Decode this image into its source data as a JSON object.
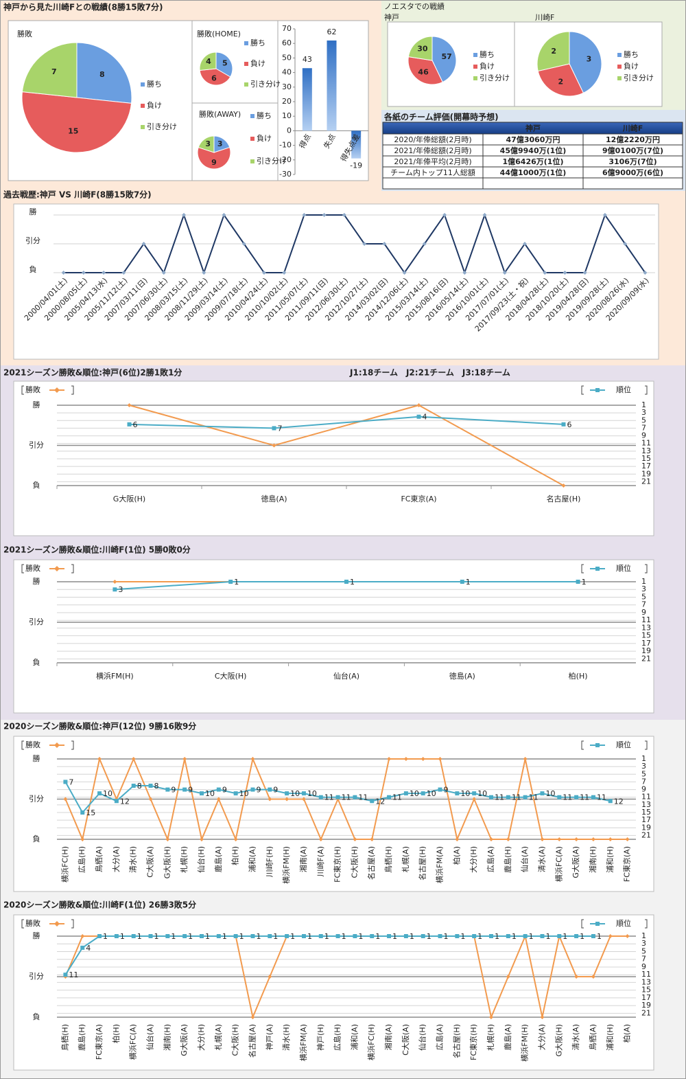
{
  "headings": {
    "kobe_vs_kawasaki": "神戸から見た川崎Fとの戦績(8勝15敗7分)",
    "noesta": "ノエスタでの戦績"
  },
  "table": {
    "title": "各紙のチーム評価(開幕時予想)",
    "header": [
      "神戸",
      "川崎F"
    ],
    "rows": [
      [
        "2020/年俸総額(2月時)",
        "47億3060万円",
        "12億2220万円"
      ],
      [
        "2021/年俸総額(2月時)",
        "45億9940万(1位)",
        "9億0100万(7位)"
      ],
      [
        "2021/年俸平均(2月時)",
        "1億6426万(1位)",
        "3106万(7位)"
      ],
      [
        "チーム内トップ11人総額",
        "44億1000万(1位)",
        "6億9000万(6位)"
      ]
    ]
  },
  "chart_data": [
    {
      "type": "pie",
      "title": "勝敗",
      "categories": [
        "勝ち",
        "負け",
        "引き分け"
      ],
      "values": [
        8,
        15,
        7
      ],
      "colors": [
        "#6a9ee0",
        "#e65c5c",
        "#a8d46a"
      ]
    },
    {
      "type": "pie",
      "title": "勝敗(HOME)",
      "categories": [
        "勝ち",
        "負け",
        "引き分け"
      ],
      "values": [
        5,
        6,
        4
      ],
      "colors": [
        "#6a9ee0",
        "#e65c5c",
        "#a8d46a"
      ]
    },
    {
      "type": "pie",
      "title": "勝敗(AWAY)",
      "categories": [
        "勝ち",
        "負け",
        "引き分け"
      ],
      "values": [
        3,
        9,
        3
      ],
      "colors": [
        "#6a9ee0",
        "#e65c5c",
        "#a8d46a"
      ]
    },
    {
      "type": "bar",
      "categories": [
        "得点",
        "失点",
        "得失点差"
      ],
      "values": [
        43,
        62,
        -19
      ],
      "color": "#4a86d4",
      "ylim": [
        -30,
        70
      ],
      "yticks": [
        -30,
        -20,
        -10,
        0,
        10,
        20,
        30,
        40,
        50,
        60,
        70
      ]
    },
    {
      "type": "pie",
      "title": "神戸",
      "categories": [
        "勝ち",
        "負け",
        "引き分け"
      ],
      "values": [
        57,
        46,
        30
      ],
      "colors": [
        "#6a9ee0",
        "#e65c5c",
        "#a8d46a"
      ]
    },
    {
      "type": "pie",
      "title": "川崎F",
      "categories": [
        "勝ち",
        "負け",
        "引き分け"
      ],
      "values": [
        3,
        2,
        2
      ],
      "colors": [
        "#6a9ee0",
        "#e65c5c",
        "#a8d46a"
      ]
    },
    {
      "type": "line",
      "title": "過去戦歴:神戸 VS 川崎F(8勝15敗7分)",
      "color": "#1f3864",
      "categories": [
        "2000/04/01(土)",
        "2000/08/05(土)",
        "2005/04/13(水)",
        "2005/11/12(土)",
        "2007/03/11(日)",
        "2007/06/30(土)",
        "2008/03/15(土)",
        "2008/11/29(土)",
        "2009/03/14(土)",
        "2009/07/18(土)",
        "2010/04/24(土)",
        "2010/10/02(土)",
        "2011/05/07(土)",
        "2011/09/11(日)",
        "2012/06/30(土)",
        "2012/10/27(土)",
        "2014/03/02(日)",
        "2014/12/06(土)",
        "2015/03/14(土)",
        "2015/08/16(日)",
        "2016/05/14(土)",
        "2016/10/01(土)",
        "2017/07/01(土)",
        "2017/09/23(土・祝)",
        "2018/04/28(土)",
        "2018/10/20(土)",
        "2019/04/28(日)",
        "2019/09/28(土)",
        "2020/08/26(水)",
        "2020/09/09(水)"
      ],
      "values": [
        0,
        0,
        0,
        0,
        1,
        0,
        2,
        0,
        2,
        1,
        0,
        0,
        2,
        2,
        2,
        1,
        1,
        0,
        1,
        2,
        0,
        2,
        0,
        1,
        0,
        0,
        0,
        2,
        1,
        0
      ],
      "ylim": [
        0,
        2
      ],
      "yticks": [
        {
          "value": 0,
          "label": "負"
        },
        {
          "value": 1,
          "label": "引分"
        },
        {
          "value": 2,
          "label": "勝"
        }
      ]
    },
    {
      "type": "line",
      "title": "2021シーズン勝敗&順位:神戸(6位)2勝1敗1分",
      "annotation": "J1:18チーム　J2:21チーム　J3:18チーム",
      "categories": [
        "G大阪(H)",
        "徳島(A)",
        "FC東京(A)",
        "名古屋(H)"
      ],
      "series": [
        {
          "name": "勝敗",
          "color": "#f29a4e",
          "values": [
            2,
            1,
            2,
            0
          ]
        },
        {
          "name": "順位",
          "color": "#4bacc6",
          "axis": "y2",
          "labels": true,
          "values": [
            6,
            7,
            4,
            6
          ]
        }
      ],
      "ylim": [
        0,
        2
      ],
      "yticks": [
        {
          "value": 0,
          "label": "負"
        },
        {
          "value": 1,
          "label": "引分"
        },
        {
          "value": 2,
          "label": "勝"
        }
      ],
      "y2lim": [
        22,
        1
      ],
      "y2ticks": [
        1,
        3,
        5,
        7,
        9,
        11,
        13,
        15,
        17,
        19,
        21
      ]
    },
    {
      "type": "line",
      "title": "2021シーズン勝敗&順位:川崎F(1位) 5勝0敗0分",
      "categories": [
        "横浜FM(H)",
        "C大阪(H)",
        "仙台(A)",
        "徳島(A)",
        "柏(H)"
      ],
      "series": [
        {
          "name": "勝敗",
          "color": "#f29a4e",
          "values": [
            2,
            2,
            2,
            2,
            2
          ]
        },
        {
          "name": "順位",
          "color": "#4bacc6",
          "axis": "y2",
          "labels": true,
          "values": [
            3,
            1,
            1,
            1,
            1
          ]
        }
      ],
      "ylim": [
        0,
        2
      ],
      "yticks": [
        {
          "value": 0,
          "label": "負"
        },
        {
          "value": 1,
          "label": "引分"
        },
        {
          "value": 2,
          "label": "勝"
        }
      ],
      "y2lim": [
        22,
        1
      ],
      "y2ticks": [
        1,
        3,
        5,
        7,
        9,
        11,
        13,
        15,
        17,
        19,
        21
      ]
    },
    {
      "type": "line",
      "title": "2020シーズン勝敗&順位:神戸(12位) 9勝16敗9分",
      "categories": [
        "横浜FC(H)",
        "広島(H)",
        "鳥栖(A)",
        "大分(A)",
        "清水(H)",
        "C大阪(A)",
        "G大阪(H)",
        "札幌(H)",
        "仙台(H)",
        "鹿島(A)",
        "柏(H)",
        "浦和(A)",
        "川崎F(H)",
        "横浜FM(H)",
        "湘南(A)",
        "川崎F(A)",
        "FC東京(H)",
        "C大阪(H)",
        "名古屋(A)",
        "鳥栖(H)",
        "札幌(A)",
        "名古屋(H)",
        "横浜FM(A)",
        "柏(A)",
        "大分(H)",
        "広島(A)",
        "鹿島(H)",
        "仙台(A)",
        "清水(A)",
        "横浜FC(A)",
        "G大阪(A)",
        "湘南(H)",
        "浦和(H)",
        "FC東京(A)"
      ],
      "series": [
        {
          "name": "勝敗",
          "color": "#f29a4e",
          "values": [
            1,
            0,
            2,
            1,
            2,
            1,
            0,
            2,
            0,
            1,
            0,
            2,
            1,
            1,
            1,
            0,
            1,
            0,
            0,
            2,
            2,
            2,
            2,
            0,
            1,
            0,
            0,
            2,
            0,
            0,
            0,
            0,
            0,
            0
          ]
        },
        {
          "name": "順位",
          "color": "#4bacc6",
          "axis": "y2",
          "labels": true,
          "values": [
            7,
            15,
            10,
            12,
            8,
            8,
            9,
            9,
            10,
            9,
            10,
            9,
            9,
            10,
            10,
            11,
            11,
            11,
            12,
            11,
            10,
            10,
            9,
            10,
            10,
            11,
            11,
            11,
            10,
            11,
            11,
            11,
            12,
            null
          ]
        }
      ],
      "ylim": [
        0,
        2
      ],
      "yticks": [
        {
          "value": 0,
          "label": "負"
        },
        {
          "value": 1,
          "label": "引分"
        },
        {
          "value": 2,
          "label": "勝"
        }
      ],
      "y2lim": [
        22,
        1
      ],
      "y2ticks": [
        1,
        3,
        5,
        7,
        9,
        11,
        13,
        15,
        17,
        19,
        21
      ]
    },
    {
      "type": "line",
      "title": "2020シーズン勝敗&順位:川崎F(1位) 26勝3敗5分",
      "categories": [
        "鳥栖(H)",
        "鹿島(H)",
        "FC東京(A)",
        "柏(H)",
        "横浜FC(A)",
        "仙台(A)",
        "湘南(H)",
        "G大阪(A)",
        "大分(H)",
        "札幌(A)",
        "C大阪(H)",
        "名古屋(A)",
        "神戸(A)",
        "清水(H)",
        "横浜FM(A)",
        "神戸(H)",
        "広島(H)",
        "浦和(A)",
        "横浜FC(H)",
        "湘南(A)",
        "C大阪(A)",
        "仙台(H)",
        "広島(A)",
        "名古屋(H)",
        "FC東京(H)",
        "札幌(H)",
        "鹿島(A)",
        "横浜FM(H)",
        "大分(A)",
        "G大阪(H)",
        "清水(A)",
        "鳥栖(A)",
        "浦和(H)",
        "柏(A)"
      ],
      "series": [
        {
          "name": "勝敗",
          "color": "#f29a4e",
          "values": [
            1,
            2,
            2,
            2,
            2,
            2,
            2,
            2,
            2,
            2,
            2,
            0,
            1,
            2,
            2,
            2,
            2,
            2,
            2,
            2,
            2,
            2,
            2,
            2,
            2,
            0,
            1,
            2,
            0,
            2,
            1,
            1,
            2,
            2
          ]
        },
        {
          "name": "順位",
          "color": "#4bacc6",
          "axis": "y2",
          "labels": true,
          "values": [
            11,
            4,
            1,
            1,
            1,
            1,
            1,
            1,
            1,
            1,
            1,
            1,
            1,
            1,
            1,
            1,
            1,
            1,
            1,
            1,
            1,
            1,
            1,
            1,
            1,
            1,
            1,
            1,
            1,
            1,
            1,
            1,
            null,
            null
          ]
        }
      ],
      "ylim": [
        0,
        2
      ],
      "yticks": [
        {
          "value": 0,
          "label": "負"
        },
        {
          "value": 1,
          "label": "引分"
        },
        {
          "value": 2,
          "label": "勝"
        }
      ],
      "y2lim": [
        22,
        1
      ],
      "y2ticks": [
        1,
        3,
        5,
        7,
        9,
        11,
        13,
        15,
        17,
        19,
        21
      ]
    }
  ]
}
